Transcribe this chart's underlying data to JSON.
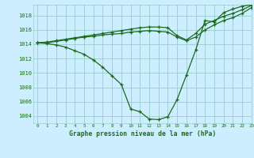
{
  "title": "Graphe pression niveau de la mer (hPa)",
  "background_color": "#cceeff",
  "grid_color": "#99cccc",
  "line_color": "#1a6b1a",
  "xlim": [
    -0.5,
    23
  ],
  "ylim": [
    1003.0,
    1019.5
  ],
  "yticks": [
    1004,
    1006,
    1008,
    1010,
    1012,
    1014,
    1016,
    1018
  ],
  "xticks": [
    0,
    1,
    2,
    3,
    4,
    5,
    6,
    7,
    8,
    9,
    10,
    11,
    12,
    13,
    14,
    15,
    16,
    17,
    18,
    19,
    20,
    21,
    22,
    23
  ],
  "series1": {
    "x": [
      0,
      1,
      2,
      3,
      4,
      5,
      6,
      7,
      8,
      9,
      10,
      11,
      12,
      13,
      14,
      15,
      16,
      17,
      18,
      19,
      20,
      21,
      22,
      23
    ],
    "y": [
      1014.2,
      1014.1,
      1013.9,
      1013.6,
      1013.1,
      1012.6,
      1011.8,
      1010.8,
      1009.6,
      1008.4,
      1005.0,
      1004.6,
      1003.6,
      1003.5,
      1003.9,
      1006.3,
      1009.7,
      1013.2,
      1017.3,
      1017.1,
      1018.4,
      1018.9,
      1019.3,
      1019.5
    ]
  },
  "series2": {
    "x": [
      0,
      1,
      2,
      3,
      4,
      5,
      6,
      7,
      8,
      9,
      10,
      11,
      12,
      13,
      14,
      15,
      16,
      17,
      18,
      19,
      20,
      21,
      22,
      23
    ],
    "y": [
      1014.2,
      1014.3,
      1014.5,
      1014.7,
      1014.9,
      1015.1,
      1015.3,
      1015.5,
      1015.7,
      1015.9,
      1016.1,
      1016.3,
      1016.4,
      1016.4,
      1016.3,
      1015.2,
      1014.6,
      1015.5,
      1016.8,
      1017.3,
      1017.9,
      1018.3,
      1018.8,
      1019.4
    ]
  },
  "series3": {
    "x": [
      0,
      1,
      2,
      3,
      4,
      5,
      6,
      7,
      8,
      9,
      10,
      11,
      12,
      13,
      14,
      15,
      16,
      17,
      18,
      19,
      20,
      21,
      22,
      23
    ],
    "y": [
      1014.2,
      1014.2,
      1014.4,
      1014.6,
      1014.8,
      1015.0,
      1015.1,
      1015.3,
      1015.4,
      1015.5,
      1015.7,
      1015.8,
      1015.9,
      1015.8,
      1015.7,
      1015.0,
      1014.5,
      1015.0,
      1016.0,
      1016.7,
      1017.3,
      1017.7,
      1018.3,
      1019.1
    ]
  }
}
